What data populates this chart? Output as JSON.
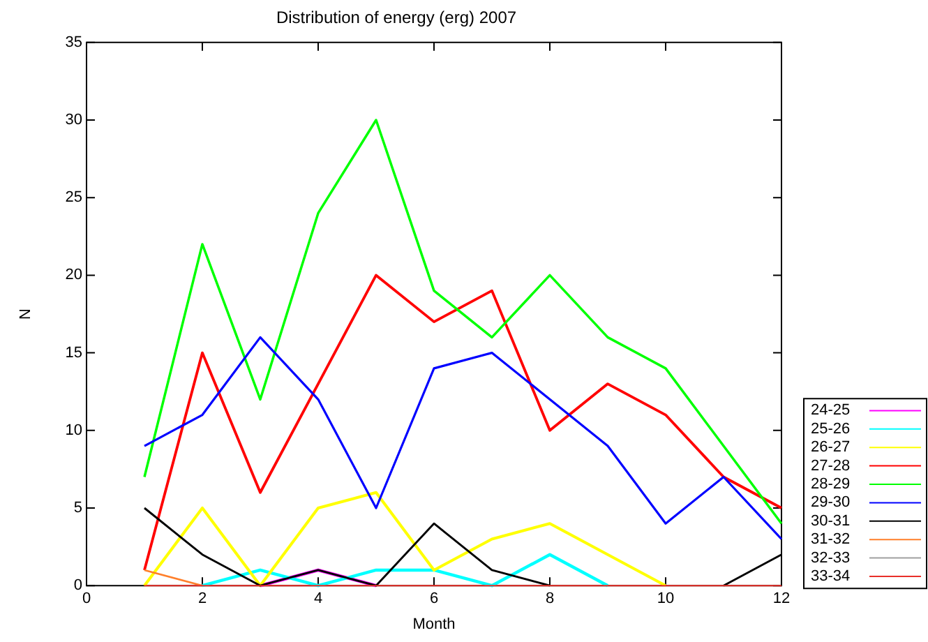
{
  "chart_data": {
    "type": "line",
    "title": "Distribution of energy (erg) 2007",
    "xlabel": "Month",
    "ylabel": "N",
    "x": [
      1,
      2,
      3,
      4,
      5,
      6,
      7,
      8,
      9,
      10,
      11,
      12
    ],
    "xlim": [
      0,
      12
    ],
    "xticks": [
      0,
      2,
      4,
      6,
      8,
      10,
      12
    ],
    "ylim": [
      0,
      35
    ],
    "yticks": [
      0,
      5,
      10,
      15,
      20,
      25,
      30,
      35
    ],
    "grid": false,
    "legend": "bottom right",
    "marker": "none",
    "line_style": "solid",
    "series": [
      {
        "name": "24-25",
        "color": "#ff00ff",
        "values": [
          null,
          null,
          0,
          1,
          0,
          null,
          null,
          null,
          null,
          null,
          null,
          null
        ]
      },
      {
        "name": "25-26",
        "color": "#00ffff",
        "values": [
          null,
          0,
          1,
          0,
          1,
          1,
          0,
          2,
          0,
          null,
          null,
          null
        ]
      },
      {
        "name": "26-27",
        "color": "#ffff00",
        "values": [
          0,
          5,
          0,
          5,
          6,
          1,
          3,
          4,
          2,
          0,
          null,
          null
        ]
      },
      {
        "name": "27-28",
        "color": "#ff0000",
        "values": [
          1,
          15,
          6,
          13,
          20,
          17,
          19,
          10,
          13,
          11,
          7,
          5
        ]
      },
      {
        "name": "28-29",
        "color": "#00ff00",
        "values": [
          7,
          22,
          12,
          24,
          30,
          19,
          16,
          20,
          16,
          14,
          9,
          4
        ]
      },
      {
        "name": "29-30",
        "color": "#0000ff",
        "values": [
          9,
          11,
          16,
          12,
          5,
          14,
          15,
          12,
          9,
          4,
          7,
          3
        ]
      },
      {
        "name": "30-31",
        "color": "#000000",
        "values": [
          5,
          2,
          0,
          1,
          0,
          4,
          1,
          0,
          null,
          null,
          0,
          2
        ]
      },
      {
        "name": "31-32",
        "color": "#ff7f2a",
        "values": [
          1,
          0,
          null,
          null,
          null,
          null,
          null,
          null,
          null,
          null,
          null,
          null
        ]
      },
      {
        "name": "32-33",
        "color": "#a0a0a0",
        "values": [
          null,
          null,
          null,
          null,
          null,
          null,
          null,
          null,
          null,
          null,
          null,
          null
        ]
      },
      {
        "name": "33-34",
        "color": "#e8302a",
        "values": [
          0,
          0,
          0,
          0,
          0,
          0,
          0,
          0,
          0,
          0,
          0,
          0
        ]
      }
    ]
  }
}
